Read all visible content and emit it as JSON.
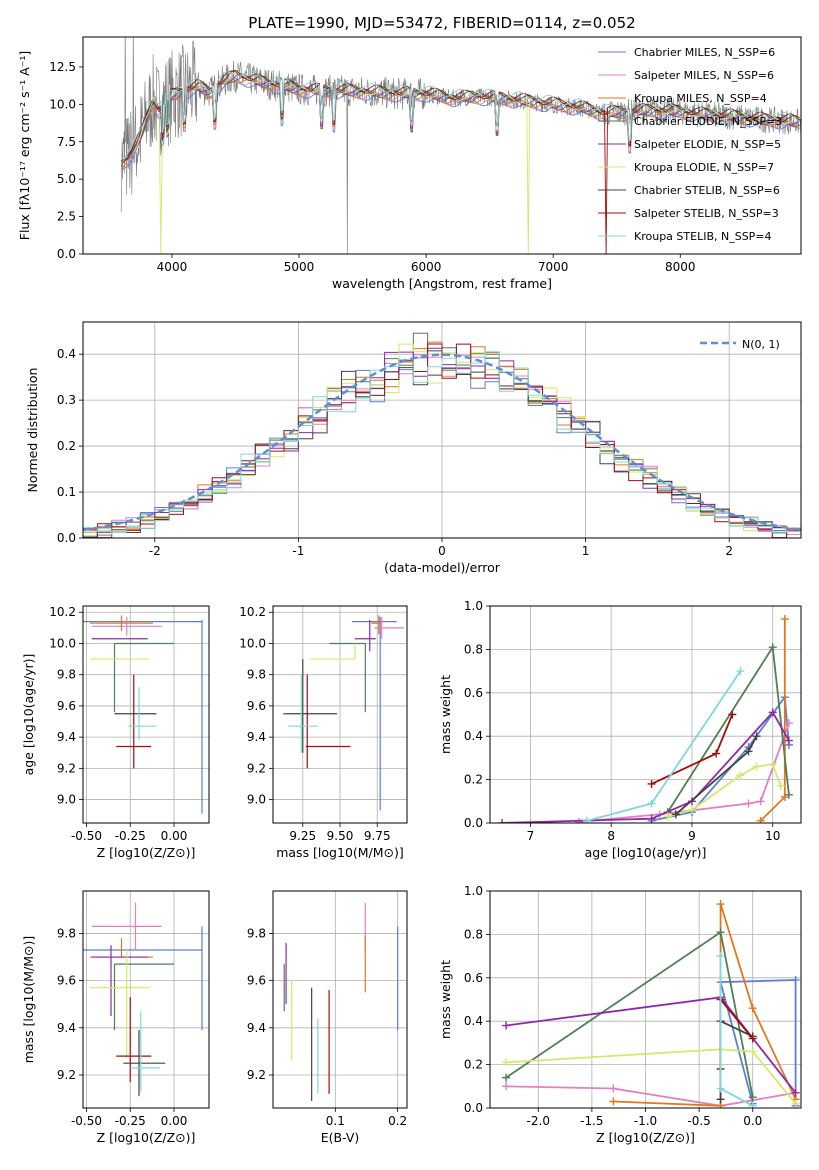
{
  "colors": {
    "chabrier_miles": "#5b7fd6",
    "salpeter_miles": "#e57fc0",
    "kroupa_miles": "#e0771c",
    "chabrier_elodie": "#4f7f55",
    "salpeter_elodie": "#8e2aa8",
    "kroupa_elodie": "#d4e86a",
    "chabrier_stelib": "#444444",
    "salpeter_stelib": "#a10e0e",
    "kroupa_stelib": "#7fd8d8"
  },
  "chart_data": [
    {
      "id": "spectrum",
      "type": "line",
      "title": "PLATE=1990, MJD=53472, FIBERID=0114, z=0.052",
      "xlabel": "wavelength [Angstrom, rest frame]",
      "ylabel": "Flux [fλ10⁻¹⁷ erg cm⁻² s⁻¹ A⁻¹]",
      "xlim": [
        3300,
        8950
      ],
      "ylim": [
        0,
        14.5
      ],
      "xticks": [
        4000,
        5000,
        6000,
        7000,
        8000
      ],
      "yticks": [
        0.0,
        2.5,
        5.0,
        7.5,
        10.0,
        12.5
      ],
      "grid": false,
      "legend_position": "top-right",
      "legend": [
        "Chabrier MILES, N_SSP=6",
        "Salpeter MILES, N_SSP=6",
        "Kroupa MILES, N_SSP=4",
        "Chabrier ELODIE, N_SSP=3",
        "Salpeter ELODIE, N_SSP=5",
        "Kroupa ELODIE, N_SSP=7",
        "Chabrier STELIB, N_SSP=6",
        "Salpeter STELIB, N_SSP=3",
        "Kroupa STELIB, N_SSP=4"
      ],
      "continuum": {
        "x": [
          3600,
          3650,
          3700,
          3750,
          3800,
          3850,
          3900,
          3950,
          4000,
          4100,
          4200,
          4300,
          4400,
          4500,
          4600,
          4700,
          4800,
          4900,
          5000,
          5200,
          5400,
          5600,
          5800,
          6000,
          6200,
          6400,
          6600,
          6800,
          7000,
          7200,
          7400,
          7600,
          7800,
          8000,
          8200,
          8400,
          8600,
          8800,
          8950
        ],
        "y": [
          6.0,
          6.4,
          7.0,
          7.8,
          9.0,
          10.2,
          9.6,
          10.2,
          10.6,
          10.9,
          11.2,
          10.8,
          11.5,
          11.9,
          11.7,
          11.5,
          11.3,
          11.2,
          11.0,
          10.9,
          10.9,
          10.8,
          10.7,
          10.7,
          10.4,
          10.5,
          10.4,
          10.2,
          10.0,
          9.8,
          9.4,
          9.5,
          9.6,
          9.5,
          9.3,
          9.2,
          9.0,
          8.9,
          8.8
        ]
      }
    },
    {
      "id": "residuals",
      "type": "histogram",
      "xlabel": "(data-model)/error",
      "ylabel": "Normed distribution",
      "xlim": [
        -2.5,
        2.5
      ],
      "ylim": [
        0,
        0.47
      ],
      "xticks": [
        -2,
        -1,
        0,
        1,
        2
      ],
      "yticks": [
        0.0,
        0.1,
        0.2,
        0.3,
        0.4
      ],
      "grid": true,
      "legend_position": "top-right",
      "legend": [
        "N(0, 1)"
      ]
    },
    {
      "id": "age_vs_Z",
      "type": "errorbar",
      "xlabel": "Z [log10(Z/Z⊙)]",
      "ylabel": "age  [log10(age/yr)]",
      "xlim": [
        -0.52,
        0.2
      ],
      "ylim": [
        8.85,
        10.24
      ],
      "xticks": [
        -0.5,
        -0.25,
        0.0
      ],
      "yticks": [
        9.0,
        9.2,
        9.4,
        9.6,
        9.8,
        10.0,
        10.2
      ],
      "grid": true,
      "points": [
        {
          "series": "chabrier_miles",
          "x": -0.21,
          "xerr": 0.37,
          "y": 10.14,
          "yerr": 0.0,
          "vx": 0.16,
          "vy": 9.53,
          "vyerr": 0.62
        },
        {
          "series": "salpeter_miles",
          "x": -0.27,
          "xerr": 0.2,
          "y": 10.11,
          "yerr": 0.06
        },
        {
          "series": "kroupa_miles",
          "x": -0.3,
          "xerr": 0.18,
          "y": 10.13,
          "yerr": 0.05
        },
        {
          "series": "chabrier_elodie",
          "x": -0.17,
          "xerr": 0.17,
          "y": 10.0,
          "yerr": 0.0,
          "vx": -0.34,
          "vy": 9.78,
          "vyerr": 0.22
        },
        {
          "series": "salpeter_elodie",
          "x": -0.31,
          "xerr": 0.16,
          "y": 10.03,
          "yerr": 0.0
        },
        {
          "series": "kroupa_elodie",
          "x": -0.31,
          "xerr": 0.17,
          "y": 9.9,
          "yerr": 0.0
        },
        {
          "series": "chabrier_stelib",
          "x": -0.22,
          "xerr": 0.12,
          "y": 9.55,
          "yerr": 0.0
        },
        {
          "series": "salpeter_stelib",
          "x": -0.23,
          "xerr": 0.1,
          "y": 9.34,
          "yerr": 0.0,
          "vx": -0.23,
          "vy": 9.5,
          "vyerr": 0.3
        },
        {
          "series": "kroupa_stelib",
          "x": -0.18,
          "xerr": 0.08,
          "y": 9.47,
          "yerr": 0.0,
          "vx": -0.2,
          "vy": 9.55,
          "vyerr": 0.17
        }
      ]
    },
    {
      "id": "age_vs_mass",
      "type": "errorbar",
      "xlabel": "mass [log10(M/M⊙)]",
      "ylabel": "",
      "xlim": [
        9.05,
        9.95
      ],
      "ylim": [
        8.85,
        10.24
      ],
      "xticks": [
        9.25,
        9.5,
        9.75
      ],
      "yticks": [
        9.0,
        9.2,
        9.4,
        9.6,
        9.8,
        10.0,
        10.2
      ],
      "grid": true,
      "points": [
        {
          "series": "chabrier_miles",
          "x": 9.73,
          "xerr": 0.15,
          "y": 10.14,
          "vx": 9.77,
          "vy": 9.55,
          "vyerr": 0.62
        },
        {
          "series": "salpeter_miles",
          "x": 9.83,
          "xerr": 0.1,
          "y": 10.1,
          "vx": 9.78,
          "vy": 10.1,
          "vyerr": 0.07
        },
        {
          "series": "kroupa_miles",
          "x": 9.74,
          "xerr": 0.03,
          "y": 10.13,
          "vx": 9.76,
          "vy": 10.12,
          "vyerr": 0.06
        },
        {
          "series": "chabrier_elodie",
          "x": 9.55,
          "xerr": 0.12,
          "y": 10.0,
          "vx": 9.67,
          "vy": 9.78,
          "vyerr": 0.22
        },
        {
          "series": "salpeter_elodie",
          "x": 9.67,
          "xerr": 0.07,
          "y": 10.03,
          "vx": 9.7,
          "vy": 10.05,
          "vyerr": 0.1
        },
        {
          "series": "kroupa_elodie",
          "x": 9.45,
          "xerr": 0.15,
          "y": 9.9,
          "vx": 9.6,
          "vy": 9.95,
          "vyerr": 0.05
        },
        {
          "series": "chabrier_stelib",
          "x": 9.3,
          "xerr": 0.18,
          "y": 9.55,
          "vx": 9.25,
          "vy": 9.6,
          "vyerr": 0.3
        },
        {
          "series": "salpeter_stelib",
          "x": 9.42,
          "xerr": 0.15,
          "y": 9.34,
          "vx": 9.28,
          "vy": 9.5,
          "vyerr": 0.3
        },
        {
          "series": "kroupa_stelib",
          "x": 9.25,
          "xerr": 0.1,
          "y": 9.47,
          "vx": 9.24,
          "vy": 9.55,
          "vyerr": 0.25
        }
      ]
    },
    {
      "id": "weight_vs_age",
      "type": "line",
      "xlabel": "age  [log10(age/yr)]",
      "ylabel": "mass weight",
      "xlim": [
        6.5,
        10.35
      ],
      "ylim": [
        0,
        1.0
      ],
      "xticks": [
        7,
        8,
        9,
        10
      ],
      "yticks": [
        0.0,
        0.2,
        0.4,
        0.6,
        0.8,
        1.0
      ],
      "grid": true,
      "series": [
        {
          "key": "chabrier_miles",
          "x": [
            8.5,
            9.0,
            9.7,
            10.15,
            10.2
          ],
          "y": [
            0.01,
            0.05,
            0.35,
            0.58,
            0.36
          ]
        },
        {
          "key": "salpeter_miles",
          "x": [
            7.6,
            8.6,
            9.7,
            9.85,
            10.2
          ],
          "y": [
            0.005,
            0.04,
            0.09,
            0.1,
            0.46
          ]
        },
        {
          "key": "kroupa_miles",
          "x": [
            9.85,
            10.15,
            10.15
          ],
          "y": [
            0.01,
            0.12,
            0.94
          ]
        },
        {
          "key": "chabrier_elodie",
          "x": [
            8.7,
            10.0,
            10.2
          ],
          "y": [
            0.05,
            0.81,
            0.13
          ]
        },
        {
          "key": "salpeter_elodie",
          "x": [
            6.65,
            8.5,
            9.0,
            10.0,
            10.2
          ],
          "y": [
            0.0,
            0.02,
            0.1,
            0.51,
            0.38
          ]
        },
        {
          "key": "kroupa_elodie",
          "x": [
            8.7,
            9.0,
            9.6,
            9.8,
            10.0,
            10.1
          ],
          "y": [
            0.03,
            0.06,
            0.22,
            0.26,
            0.27,
            0.17
          ]
        },
        {
          "key": "chabrier_stelib",
          "x": [
            8.8,
            9.7,
            9.8
          ],
          "y": [
            0.04,
            0.33,
            0.4
          ]
        },
        {
          "key": "salpeter_stelib",
          "x": [
            8.5,
            9.3,
            9.5
          ],
          "y": [
            0.18,
            0.32,
            0.5
          ]
        },
        {
          "key": "kroupa_stelib",
          "x": [
            7.7,
            8.5,
            9.6
          ],
          "y": [
            0.01,
            0.09,
            0.7
          ]
        }
      ]
    },
    {
      "id": "mass_vs_Z",
      "type": "errorbar",
      "xlabel": "Z [log10(Z/Z⊙)]",
      "ylabel": "mass [log10(M/M⊙)]",
      "xlim": [
        -0.52,
        0.2
      ],
      "ylim": [
        9.06,
        9.98
      ],
      "xticks": [
        -0.5,
        -0.25,
        0.0
      ],
      "yticks": [
        9.2,
        9.4,
        9.6,
        9.8
      ],
      "grid": true,
      "points": [
        {
          "series": "chabrier_miles",
          "x": -0.21,
          "xerr": 0.37,
          "y": 9.73,
          "vx": 0.16,
          "vy": 9.61,
          "vyerr": 0.22
        },
        {
          "series": "salpeter_miles",
          "x": -0.27,
          "xerr": 0.2,
          "y": 9.83,
          "vx": -0.22,
          "vy": 9.83,
          "vyerr": 0.1
        },
        {
          "series": "kroupa_miles",
          "x": -0.3,
          "xerr": 0.18,
          "y": 9.7,
          "vx": -0.3,
          "vy": 9.74,
          "vyerr": 0.04
        },
        {
          "series": "chabrier_elodie",
          "x": -0.17,
          "xerr": 0.17,
          "y": 9.67,
          "vx": -0.34,
          "vy": 9.53,
          "vyerr": 0.14
        },
        {
          "series": "salpeter_elodie",
          "x": -0.31,
          "xerr": 0.16,
          "y": 9.7,
          "vx": -0.36,
          "vy": 9.6,
          "vyerr": 0.15
        },
        {
          "series": "kroupa_elodie",
          "x": -0.31,
          "xerr": 0.17,
          "y": 9.57,
          "vx": -0.27,
          "vy": 9.5,
          "vyerr": 0.23
        },
        {
          "series": "chabrier_stelib",
          "x": -0.17,
          "xerr": 0.12,
          "y": 9.25,
          "vx": -0.2,
          "vy": 9.25,
          "vyerr": 0.14
        },
        {
          "series": "salpeter_stelib",
          "x": -0.23,
          "xerr": 0.1,
          "y": 9.28,
          "vx": -0.25,
          "vy": 9.35,
          "vyerr": 0.18
        },
        {
          "series": "kroupa_stelib",
          "x": -0.16,
          "xerr": 0.08,
          "y": 9.23,
          "vx": -0.19,
          "vy": 9.3,
          "vyerr": 0.17
        }
      ]
    },
    {
      "id": "mass_vs_ebv",
      "type": "errorbar",
      "xlabel": "E(B-V)",
      "ylabel": "",
      "xlim": [
        0.0,
        0.215
      ],
      "ylim": [
        9.06,
        9.98
      ],
      "xticks": [
        0.1,
        0.2
      ],
      "yticks": [
        9.2,
        9.4,
        9.6,
        9.8
      ],
      "grid": true,
      "points": [
        {
          "series": "chabrier_miles",
          "x": 0.2,
          "y": 9.61,
          "yerr": 0.22
        },
        {
          "series": "salpeter_miles",
          "x": 0.148,
          "y": 9.83,
          "yerr": 0.1
        },
        {
          "series": "kroupa_miles",
          "x": 0.148,
          "y": 9.67,
          "yerr": 0.12
        },
        {
          "series": "chabrier_elodie",
          "x": 0.018,
          "y": 9.57,
          "yerr": 0.1
        },
        {
          "series": "salpeter_elodie",
          "x": 0.021,
          "y": 9.63,
          "yerr": 0.13
        },
        {
          "series": "kroupa_elodie",
          "x": 0.03,
          "y": 9.43,
          "yerr": 0.17
        },
        {
          "series": "chabrier_stelib",
          "x": 0.062,
          "y": 9.33,
          "yerr": 0.24
        },
        {
          "series": "salpeter_stelib",
          "x": 0.09,
          "y": 9.34,
          "yerr": 0.22
        },
        {
          "series": "kroupa_stelib",
          "x": 0.072,
          "y": 9.28,
          "yerr": 0.16
        }
      ]
    },
    {
      "id": "weight_vs_Z",
      "type": "line",
      "xlabel": "Z [log10(Z/Z⊙)]",
      "ylabel": "mass weight",
      "xlim": [
        -2.45,
        0.45
      ],
      "ylim": [
        0,
        1.0
      ],
      "xticks": [
        -2.0,
        -1.5,
        -1.0,
        -0.5,
        0.0
      ],
      "yticks": [
        0.0,
        0.2,
        0.4,
        0.6,
        0.8,
        1.0
      ],
      "grid": true,
      "series": [
        {
          "key": "chabrier_miles",
          "x": [
            0.4,
            0.4,
            -0.3,
            0.0
          ],
          "y": [
            0.01,
            0.59,
            0.58,
            0.02
          ]
        },
        {
          "key": "salpeter_miles",
          "x": [
            -2.3,
            -1.3,
            -0.3,
            0.4
          ],
          "y": [
            0.1,
            0.09,
            0.01,
            0.07
          ]
        },
        {
          "key": "kroupa_miles",
          "x": [
            -1.3,
            -0.3,
            -0.3,
            0.0,
            0.4
          ],
          "y": [
            0.03,
            0.01,
            0.94,
            0.46,
            0.04
          ]
        },
        {
          "key": "chabrier_elodie",
          "x": [
            -2.3,
            -0.3,
            0.0
          ],
          "y": [
            0.14,
            0.81,
            0.05
          ]
        },
        {
          "key": "salpeter_elodie",
          "x": [
            -2.3,
            -0.3,
            0.4
          ],
          "y": [
            0.38,
            0.51,
            0.07
          ]
        },
        {
          "key": "kroupa_elodie",
          "x": [
            -2.3,
            -0.3,
            0.0,
            0.4
          ],
          "y": [
            0.21,
            0.27,
            0.26,
            0.02
          ]
        },
        {
          "key": "chabrier_stelib",
          "x": [
            -0.3,
            -0.3,
            0.0
          ],
          "y": [
            0.04,
            0.4,
            0.33
          ]
        },
        {
          "key": "salpeter_stelib",
          "x": [
            -0.3,
            -0.3,
            0.0
          ],
          "y": [
            0.18,
            0.5,
            0.32
          ]
        },
        {
          "key": "kroupa_stelib",
          "x": [
            -0.3,
            -0.3,
            0.0
          ],
          "y": [
            0.7,
            0.09,
            0.01
          ]
        }
      ]
    }
  ]
}
